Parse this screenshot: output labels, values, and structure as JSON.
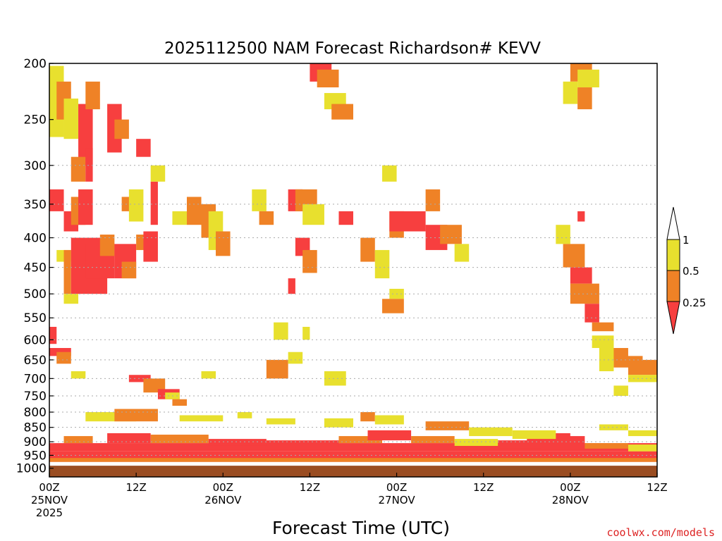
{
  "chart_data": {
    "type": "heatmap",
    "title": "2025112500 NAM Forecast Richardson# KEVV",
    "xlabel": "Forecast Time (UTC)",
    "ylabel": "",
    "credit": "coolwx.com/models",
    "y_scale": "log-pressure",
    "ylim_hpa": [
      1035,
      200
    ],
    "xlim_hours": [
      0,
      84
    ],
    "y_ticks": [
      200,
      250,
      300,
      350,
      400,
      450,
      500,
      550,
      600,
      650,
      700,
      750,
      800,
      850,
      900,
      950,
      1000
    ],
    "y_gridlines": [
      300,
      350,
      400,
      450,
      500,
      550,
      600,
      650,
      700,
      750,
      800,
      850,
      900,
      950
    ],
    "x_ticks": [
      {
        "hour": 0,
        "line1": "00Z",
        "line2": "25NOV",
        "line3": "2025"
      },
      {
        "hour": 12,
        "line1": "12Z",
        "line2": "",
        "line3": ""
      },
      {
        "hour": 24,
        "line1": "00Z",
        "line2": "26NOV",
        "line3": ""
      },
      {
        "hour": 36,
        "line1": "12Z",
        "line2": "",
        "line3": ""
      },
      {
        "hour": 48,
        "line1": "00Z",
        "line2": "27NOV",
        "line3": ""
      },
      {
        "hour": 60,
        "line1": "12Z",
        "line2": "",
        "line3": ""
      },
      {
        "hour": 72,
        "line1": "00Z",
        "line2": "28NOV",
        "line3": ""
      },
      {
        "hour": 84,
        "line1": "12Z",
        "line2": "",
        "line3": ""
      }
    ],
    "colorbar": {
      "labels": [
        "1",
        "0.5",
        "0.25"
      ],
      "colors": {
        "lt025": "#f73f3f",
        "b025_05": "#ef8226",
        "b05_1": "#e8e02e",
        "gt1": "#ffffff",
        "ground": "#9a4d22"
      }
    },
    "bins": [
      "lt025",
      "b025_05",
      "b05_1"
    ],
    "surface_hpa": 990,
    "cells": [
      [
        0,
        2,
        202,
        268,
        2
      ],
      [
        1,
        3,
        215,
        250,
        1
      ],
      [
        2,
        4,
        230,
        270,
        2
      ],
      [
        4,
        6,
        235,
        300,
        0
      ],
      [
        5,
        7,
        215,
        240,
        1
      ],
      [
        3,
        5,
        290,
        320,
        1
      ],
      [
        5,
        6,
        280,
        320,
        0
      ],
      [
        8,
        10,
        235,
        285,
        0
      ],
      [
        9,
        11,
        250,
        270,
        1
      ],
      [
        0,
        2,
        330,
        360,
        0
      ],
      [
        2,
        4,
        360,
        390,
        0
      ],
      [
        3,
        5,
        340,
        380,
        1
      ],
      [
        4,
        6,
        330,
        380,
        0
      ],
      [
        1,
        3,
        420,
        440,
        2
      ],
      [
        2,
        3,
        420,
        500,
        1
      ],
      [
        3,
        8,
        400,
        500,
        0
      ],
      [
        5,
        9,
        410,
        470,
        0
      ],
      [
        7,
        9,
        395,
        430,
        1
      ],
      [
        9,
        12,
        410,
        470,
        0
      ],
      [
        10,
        12,
        440,
        470,
        1
      ],
      [
        2,
        4,
        500,
        520,
        2
      ],
      [
        12,
        14,
        270,
        290,
        0
      ],
      [
        10,
        12,
        340,
        360,
        1
      ],
      [
        11,
        13,
        330,
        375,
        2
      ],
      [
        12,
        14,
        395,
        420,
        1
      ],
      [
        13,
        15,
        390,
        440,
        0
      ],
      [
        14,
        15,
        320,
        380,
        0
      ],
      [
        14,
        16,
        300,
        320,
        2
      ],
      [
        17,
        19,
        360,
        380,
        2
      ],
      [
        19,
        21,
        340,
        380,
        1
      ],
      [
        21,
        23,
        350,
        400,
        1
      ],
      [
        22,
        24,
        360,
        420,
        2
      ],
      [
        23,
        25,
        390,
        430,
        1
      ],
      [
        28,
        30,
        330,
        360,
        2
      ],
      [
        29,
        31,
        360,
        380,
        1
      ],
      [
        33,
        35,
        330,
        360,
        0
      ],
      [
        34,
        37,
        330,
        360,
        1
      ],
      [
        35,
        38,
        350,
        380,
        2
      ],
      [
        34,
        36,
        400,
        430,
        0
      ],
      [
        35,
        37,
        420,
        460,
        1
      ],
      [
        33,
        34,
        470,
        500,
        0
      ],
      [
        36,
        39,
        200,
        215,
        0
      ],
      [
        37,
        40,
        205,
        220,
        1
      ],
      [
        38,
        41,
        225,
        240,
        2
      ],
      [
        39,
        42,
        235,
        250,
        1
      ],
      [
        40,
        42,
        360,
        380,
        0
      ],
      [
        43,
        45,
        400,
        440,
        1
      ],
      [
        45,
        47,
        420,
        470,
        2
      ],
      [
        47,
        49,
        360,
        400,
        1
      ],
      [
        47,
        52,
        360,
        390,
        0
      ],
      [
        52,
        55,
        380,
        420,
        0
      ],
      [
        54,
        57,
        380,
        410,
        1
      ],
      [
        56,
        58,
        410,
        440,
        2
      ],
      [
        52,
        54,
        330,
        360,
        1
      ],
      [
        46,
        48,
        300,
        320,
        2
      ],
      [
        47,
        49,
        490,
        510,
        2
      ],
      [
        46,
        49,
        510,
        540,
        1
      ],
      [
        35,
        36,
        570,
        600,
        2
      ],
      [
        31,
        33,
        560,
        600,
        2
      ],
      [
        21,
        23,
        680,
        700,
        2
      ],
      [
        30,
        33,
        650,
        700,
        1
      ],
      [
        33,
        35,
        630,
        660,
        2
      ],
      [
        38,
        41,
        680,
        720,
        2
      ],
      [
        0,
        1,
        570,
        610,
        0
      ],
      [
        0,
        3,
        620,
        640,
        0
      ],
      [
        1,
        3,
        630,
        660,
        1
      ],
      [
        3,
        5,
        680,
        700,
        2
      ],
      [
        11,
        14,
        690,
        710,
        0
      ],
      [
        13,
        16,
        700,
        740,
        1
      ],
      [
        15,
        18,
        730,
        760,
        0
      ],
      [
        16,
        18,
        740,
        760,
        2
      ],
      [
        17,
        19,
        760,
        780,
        1
      ],
      [
        72,
        75,
        200,
        215,
        1
      ],
      [
        73,
        76,
        205,
        220,
        2
      ],
      [
        71,
        73,
        215,
        235,
        2
      ],
      [
        73,
        75,
        220,
        240,
        1
      ],
      [
        70,
        72,
        380,
        410,
        2
      ],
      [
        71,
        74,
        410,
        450,
        1
      ],
      [
        72,
        75,
        450,
        480,
        0
      ],
      [
        72,
        76,
        480,
        520,
        1
      ],
      [
        74,
        76,
        520,
        560,
        0
      ],
      [
        75,
        78,
        560,
        580,
        1
      ],
      [
        75,
        78,
        590,
        620,
        2
      ],
      [
        77,
        80,
        620,
        650,
        1
      ],
      [
        78,
        82,
        640,
        670,
        1
      ],
      [
        80,
        84,
        650,
        690,
        1
      ],
      [
        80,
        84,
        690,
        710,
        2
      ],
      [
        76,
        78,
        600,
        680,
        2
      ],
      [
        73,
        74,
        360,
        375,
        0
      ],
      [
        78,
        80,
        720,
        750,
        2
      ],
      [
        0,
        84,
        905,
        935,
        0
      ],
      [
        0,
        84,
        935,
        975,
        0
      ],
      [
        2,
        6,
        880,
        905,
        1
      ],
      [
        8,
        14,
        870,
        905,
        0
      ],
      [
        14,
        22,
        875,
        905,
        1
      ],
      [
        22,
        30,
        890,
        915,
        0
      ],
      [
        30,
        40,
        895,
        920,
        0
      ],
      [
        40,
        46,
        880,
        905,
        1
      ],
      [
        44,
        50,
        860,
        895,
        0
      ],
      [
        50,
        56,
        880,
        905,
        1
      ],
      [
        56,
        62,
        890,
        915,
        2
      ],
      [
        62,
        68,
        895,
        925,
        0
      ],
      [
        66,
        74,
        880,
        920,
        0
      ],
      [
        68,
        72,
        870,
        900,
        0
      ],
      [
        74,
        80,
        905,
        925,
        1
      ],
      [
        80,
        84,
        910,
        935,
        2
      ],
      [
        0,
        84,
        960,
        975,
        1
      ],
      [
        5,
        12,
        800,
        830,
        2
      ],
      [
        9,
        15,
        790,
        830,
        1
      ],
      [
        18,
        24,
        810,
        830,
        2
      ],
      [
        26,
        28,
        800,
        820,
        2
      ],
      [
        30,
        34,
        820,
        840,
        2
      ],
      [
        38,
        42,
        820,
        850,
        2
      ],
      [
        43,
        45,
        800,
        830,
        1
      ],
      [
        45,
        49,
        810,
        840,
        2
      ],
      [
        52,
        58,
        830,
        860,
        1
      ],
      [
        58,
        64,
        850,
        880,
        2
      ],
      [
        64,
        70,
        860,
        890,
        2
      ],
      [
        76,
        80,
        840,
        860,
        2
      ],
      [
        80,
        84,
        860,
        880,
        2
      ]
    ]
  }
}
